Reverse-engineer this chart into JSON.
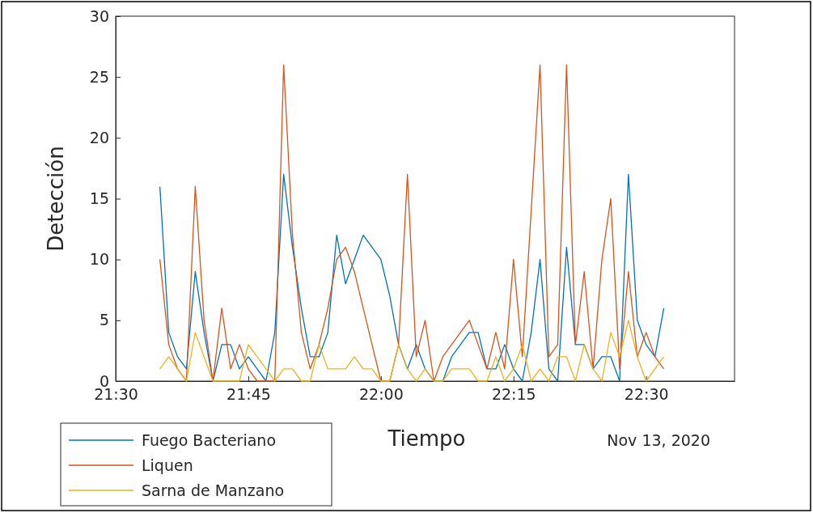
{
  "chart_data": {
    "type": "line",
    "xlabel": "Tiempo",
    "ylabel": "Detección",
    "annotations": [
      "Nov 13, 2020"
    ],
    "x": [
      "2020-11-13T21:35",
      "2020-11-13T21:36",
      "2020-11-13T21:37",
      "2020-11-13T21:38",
      "2020-11-13T21:39",
      "2020-11-13T21:40",
      "2020-11-13T21:41",
      "2020-11-13T21:42",
      "2020-11-13T21:43",
      "2020-11-13T21:44",
      "2020-11-13T21:45",
      "2020-11-13T21:46",
      "2020-11-13T21:47",
      "2020-11-13T21:48",
      "2020-11-13T21:49",
      "2020-11-13T21:50",
      "2020-11-13T21:51",
      "2020-11-13T21:52",
      "2020-11-13T21:53",
      "2020-11-13T21:54",
      "2020-11-13T21:55",
      "2020-11-13T21:56",
      "2020-11-13T21:57",
      "2020-11-13T21:58",
      "2020-11-13T21:59",
      "2020-11-13T22:00",
      "2020-11-13T22:01",
      "2020-11-13T22:02",
      "2020-11-13T22:03",
      "2020-11-13T22:04",
      "2020-11-13T22:05",
      "2020-11-13T22:06",
      "2020-11-13T22:07",
      "2020-11-13T22:08",
      "2020-11-13T22:09",
      "2020-11-13T22:10",
      "2020-11-13T22:11",
      "2020-11-13T22:12",
      "2020-11-13T22:13",
      "2020-11-13T22:14",
      "2020-11-13T22:15",
      "2020-11-13T22:16",
      "2020-11-13T22:17",
      "2020-11-13T22:18",
      "2020-11-13T22:19",
      "2020-11-13T22:20",
      "2020-11-13T22:21",
      "2020-11-13T22:22",
      "2020-11-13T22:23",
      "2020-11-13T22:24",
      "2020-11-13T22:25",
      "2020-11-13T22:26",
      "2020-11-13T22:27",
      "2020-11-13T22:28",
      "2020-11-13T22:29",
      "2020-11-13T22:30",
      "2020-11-13T22:31",
      "2020-11-13T22:32"
    ],
    "series": [
      {
        "name": "Fuego Bacteriano",
        "color": "#0072bd",
        "values": [
          16,
          4,
          2,
          1,
          9,
          4,
          0,
          3,
          3,
          1,
          2,
          1,
          0,
          4,
          17,
          11,
          6,
          2,
          2,
          4,
          12,
          8,
          10,
          12,
          11,
          10,
          7,
          3,
          1,
          3,
          1,
          0,
          0,
          2,
          3,
          4,
          4,
          1,
          1,
          3,
          1,
          0,
          4,
          10,
          1,
          0,
          11,
          3,
          3,
          1,
          2,
          2,
          0,
          17,
          5,
          3,
          2,
          6
        ]
      },
      {
        "name": "Liquen",
        "color": "#d95319",
        "values": [
          10,
          3,
          1,
          0,
          16,
          5,
          0,
          6,
          1,
          3,
          1,
          0,
          0,
          0,
          26,
          12,
          4,
          1,
          3,
          6,
          10,
          11,
          9,
          6,
          3,
          0,
          0,
          3,
          17,
          2,
          5,
          0,
          2,
          3,
          4,
          5,
          3,
          1,
          4,
          1,
          10,
          2,
          14,
          26,
          2,
          3,
          26,
          3,
          9,
          1,
          10,
          15,
          1,
          9,
          2,
          4,
          2,
          1
        ]
      },
      {
        "name": "Sarna de Manzano",
        "color": "#edb120",
        "values": [
          1,
          2,
          1,
          0,
          4,
          2,
          0,
          0,
          0,
          0,
          3,
          2,
          1,
          0,
          1,
          1,
          0,
          0,
          3,
          1,
          1,
          1,
          2,
          1,
          1,
          0,
          0,
          3,
          1,
          0,
          1,
          0,
          0,
          1,
          1,
          1,
          0,
          0,
          2,
          0,
          1,
          3,
          0,
          1,
          0,
          2,
          2,
          0,
          3,
          1,
          0,
          4,
          2,
          5,
          2,
          0,
          1,
          2
        ]
      }
    ],
    "xlim": [
      "2020-11-13T21:30",
      "2020-11-13T22:40"
    ],
    "xticks": [
      {
        "value": "2020-11-13T21:30",
        "label": "21:30"
      },
      {
        "value": "2020-11-13T21:45",
        "label": "21:45"
      },
      {
        "value": "2020-11-13T22:00",
        "label": "22:00"
      },
      {
        "value": "2020-11-13T22:15",
        "label": "22:15"
      },
      {
        "value": "2020-11-13T22:30",
        "label": "22:30"
      }
    ],
    "ylim": [
      0,
      30
    ],
    "yticks": [
      0,
      5,
      10,
      15,
      20,
      25,
      30
    ],
    "grid": false,
    "legend": "bottom left",
    "line_style": "solid",
    "marker": "none"
  }
}
